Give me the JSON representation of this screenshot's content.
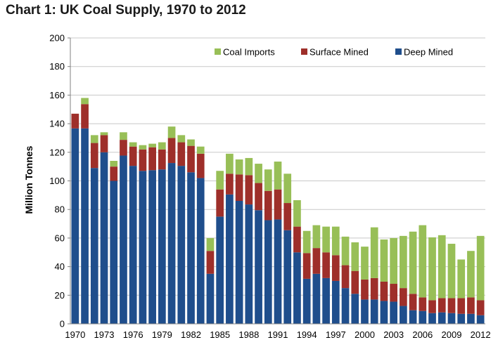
{
  "title": "Chart 1: UK Coal Supply, 1970 to 2012",
  "colors": {
    "deep": "#1f4e8c",
    "surface": "#9e2f2a",
    "imports": "#98bf57"
  },
  "chart_data": {
    "type": "bar",
    "stacked": true,
    "title": "Chart 1: UK Coal Supply, 1970 to 2012",
    "xlabel": "",
    "ylabel": "Million Tonnes",
    "ylim": [
      0,
      200
    ],
    "yticks": [
      0,
      20,
      40,
      60,
      80,
      100,
      120,
      140,
      160,
      180,
      200
    ],
    "grid": true,
    "legend_position": "top-right",
    "categories": [
      1970,
      1971,
      1972,
      1973,
      1974,
      1975,
      1976,
      1977,
      1978,
      1979,
      1980,
      1981,
      1982,
      1983,
      1984,
      1985,
      1986,
      1987,
      1988,
      1989,
      1990,
      1991,
      1992,
      1993,
      1994,
      1995,
      1996,
      1997,
      1998,
      1999,
      2000,
      2001,
      2002,
      2003,
      2004,
      2005,
      2006,
      2007,
      2008,
      2009,
      2010,
      2011,
      2012
    ],
    "xtick_labels": [
      "1970",
      "1973",
      "1976",
      "1979",
      "1982",
      "1985",
      "1988",
      "1991",
      "1994",
      "1997",
      "2000",
      "2003",
      "2006",
      "2009",
      "2012"
    ],
    "legend_order": [
      "Coal Imports",
      "Surface Mined",
      "Deep Mined"
    ],
    "series": [
      {
        "name": "Deep Mined",
        "color_key": "deep",
        "values": [
          136.7,
          136.7,
          109.0,
          120.0,
          100.0,
          117.7,
          110.5,
          107.0,
          107.5,
          108.0,
          112.5,
          110.5,
          106.0,
          102.0,
          35.0,
          75.0,
          90.5,
          86.0,
          83.5,
          79.5,
          72.5,
          73.0,
          65.5,
          50.0,
          31.5,
          35.0,
          32.0,
          30.0,
          25.0,
          21.0,
          17.0,
          17.0,
          16.0,
          15.5,
          12.5,
          9.5,
          9.0,
          7.5,
          8.0,
          7.5,
          7.0,
          7.0,
          6.0
        ]
      },
      {
        "name": "Surface Mined",
        "color_key": "surface",
        "values": [
          10.3,
          17.0,
          17.5,
          12.0,
          10.0,
          11.0,
          13.5,
          15.0,
          16.0,
          14.0,
          17.5,
          16.5,
          18.5,
          17.0,
          16.0,
          19.0,
          14.5,
          18.5,
          20.5,
          19.0,
          20.5,
          21.0,
          19.0,
          18.0,
          18.0,
          18.0,
          18.0,
          18.0,
          16.0,
          16.0,
          14.0,
          15.0,
          13.5,
          12.5,
          12.5,
          11.5,
          9.5,
          9.0,
          10.0,
          10.5,
          11.0,
          11.5,
          10.5
        ]
      },
      {
        "name": "Coal Imports",
        "color_key": "imports",
        "values": [
          0.0,
          4.3,
          5.5,
          2.0,
          4.0,
          5.3,
          3.0,
          3.0,
          2.5,
          5.0,
          8.0,
          5.0,
          4.5,
          5.0,
          9.0,
          13.0,
          14.0,
          10.5,
          12.0,
          13.5,
          15.0,
          19.5,
          20.5,
          18.5,
          15.5,
          16.0,
          18.0,
          20.0,
          20.0,
          20.0,
          23.0,
          35.5,
          29.5,
          32.0,
          36.5,
          43.5,
          50.5,
          44.0,
          44.0,
          38.0,
          27.0,
          32.5,
          45.0
        ]
      }
    ]
  }
}
